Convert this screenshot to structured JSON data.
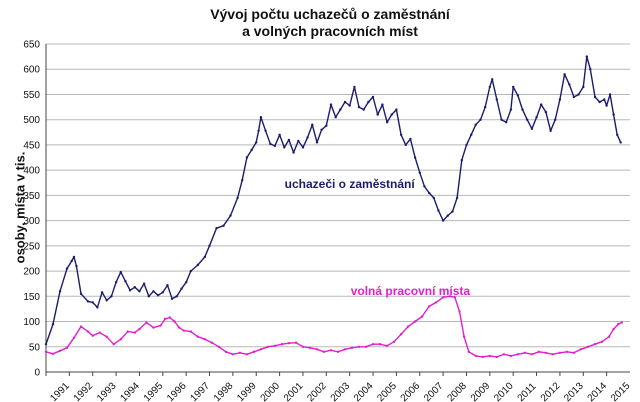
{
  "chart_data": {
    "type": "line",
    "title_line1": "Vývoj počtu uchazečů o zaměstnání",
    "title_line2": "a volných pracovních míst",
    "ylabel": "osoby, místa v tis.",
    "ylim": [
      0,
      650
    ],
    "yticks": [
      0,
      50,
      100,
      150,
      200,
      250,
      300,
      350,
      400,
      450,
      500,
      550,
      600,
      650
    ],
    "xlim": [
      1991,
      2016
    ],
    "xticks": [
      "1991",
      "1992",
      "1993",
      "1994",
      "1995",
      "1996",
      "1997",
      "1998",
      "1999",
      "2000",
      "2001",
      "2002",
      "2003",
      "2004",
      "2005",
      "2006",
      "2007",
      "2008",
      "2009",
      "2010",
      "2011",
      "2012",
      "2013",
      "2014",
      "2015"
    ],
    "grid": "horizontal",
    "series": [
      {
        "name": "uchazeči o zaměstnání",
        "color": "#1c1c6e",
        "points": [
          [
            1991.0,
            55
          ],
          [
            1991.3,
            95
          ],
          [
            1991.6,
            160
          ],
          [
            1991.9,
            205
          ],
          [
            1992.1,
            220
          ],
          [
            1992.2,
            228
          ],
          [
            1992.3,
            210
          ],
          [
            1992.5,
            155
          ],
          [
            1992.8,
            140
          ],
          [
            1993.0,
            138
          ],
          [
            1993.2,
            128
          ],
          [
            1993.4,
            158
          ],
          [
            1993.6,
            142
          ],
          [
            1993.8,
            150
          ],
          [
            1994.0,
            178
          ],
          [
            1994.2,
            198
          ],
          [
            1994.4,
            180
          ],
          [
            1994.6,
            162
          ],
          [
            1994.8,
            168
          ],
          [
            1995.0,
            160
          ],
          [
            1995.2,
            175
          ],
          [
            1995.4,
            150
          ],
          [
            1995.6,
            160
          ],
          [
            1995.8,
            152
          ],
          [
            1996.0,
            158
          ],
          [
            1996.2,
            172
          ],
          [
            1996.4,
            145
          ],
          [
            1996.6,
            150
          ],
          [
            1996.8,
            165
          ],
          [
            1997.0,
            178
          ],
          [
            1997.2,
            200
          ],
          [
            1997.5,
            212
          ],
          [
            1997.8,
            228
          ],
          [
            1998.0,
            250
          ],
          [
            1998.3,
            285
          ],
          [
            1998.6,
            290
          ],
          [
            1998.9,
            310
          ],
          [
            1999.2,
            345
          ],
          [
            1999.4,
            380
          ],
          [
            1999.6,
            425
          ],
          [
            1999.8,
            440
          ],
          [
            2000.0,
            455
          ],
          [
            2000.1,
            478
          ],
          [
            2000.2,
            505
          ],
          [
            2000.4,
            478
          ],
          [
            2000.6,
            452
          ],
          [
            2000.8,
            448
          ],
          [
            2001.0,
            470
          ],
          [
            2001.2,
            445
          ],
          [
            2001.4,
            460
          ],
          [
            2001.6,
            435
          ],
          [
            2001.8,
            458
          ],
          [
            2002.0,
            445
          ],
          [
            2002.2,
            465
          ],
          [
            2002.4,
            490
          ],
          [
            2002.6,
            455
          ],
          [
            2002.8,
            480
          ],
          [
            2003.0,
            488
          ],
          [
            2003.2,
            530
          ],
          [
            2003.4,
            505
          ],
          [
            2003.6,
            520
          ],
          [
            2003.8,
            535
          ],
          [
            2004.0,
            528
          ],
          [
            2004.2,
            565
          ],
          [
            2004.4,
            525
          ],
          [
            2004.6,
            520
          ],
          [
            2004.8,
            535
          ],
          [
            2005.0,
            545
          ],
          [
            2005.2,
            510
          ],
          [
            2005.4,
            530
          ],
          [
            2005.6,
            495
          ],
          [
            2005.8,
            510
          ],
          [
            2006.0,
            520
          ],
          [
            2006.2,
            470
          ],
          [
            2006.4,
            450
          ],
          [
            2006.6,
            462
          ],
          [
            2006.8,
            425
          ],
          [
            2007.0,
            395
          ],
          [
            2007.2,
            368
          ],
          [
            2007.4,
            355
          ],
          [
            2007.6,
            345
          ],
          [
            2007.8,
            320
          ],
          [
            2008.0,
            300
          ],
          [
            2008.2,
            310
          ],
          [
            2008.4,
            318
          ],
          [
            2008.6,
            345
          ],
          [
            2008.8,
            420
          ],
          [
            2009.0,
            450
          ],
          [
            2009.2,
            470
          ],
          [
            2009.4,
            490
          ],
          [
            2009.6,
            500
          ],
          [
            2009.8,
            525
          ],
          [
            2010.0,
            565
          ],
          [
            2010.1,
            580
          ],
          [
            2010.3,
            540
          ],
          [
            2010.5,
            500
          ],
          [
            2010.7,
            495
          ],
          [
            2010.9,
            520
          ],
          [
            2011.0,
            565
          ],
          [
            2011.2,
            548
          ],
          [
            2011.4,
            520
          ],
          [
            2011.6,
            500
          ],
          [
            2011.8,
            482
          ],
          [
            2012.0,
            505
          ],
          [
            2012.2,
            530
          ],
          [
            2012.4,
            515
          ],
          [
            2012.6,
            478
          ],
          [
            2012.8,
            500
          ],
          [
            2013.0,
            540
          ],
          [
            2013.2,
            590
          ],
          [
            2013.4,
            570
          ],
          [
            2013.6,
            545
          ],
          [
            2013.8,
            550
          ],
          [
            2014.0,
            565
          ],
          [
            2014.15,
            625
          ],
          [
            2014.3,
            600
          ],
          [
            2014.5,
            545
          ],
          [
            2014.7,
            535
          ],
          [
            2014.9,
            540
          ],
          [
            2015.0,
            528
          ],
          [
            2015.15,
            550
          ],
          [
            2015.3,
            510
          ],
          [
            2015.45,
            470
          ],
          [
            2015.6,
            455
          ]
        ]
      },
      {
        "name": "volná pracovní místa",
        "color": "#e21fce",
        "points": [
          [
            1991.0,
            40
          ],
          [
            1991.3,
            36
          ],
          [
            1991.6,
            42
          ],
          [
            1991.9,
            48
          ],
          [
            1992.2,
            68
          ],
          [
            1992.5,
            90
          ],
          [
            1992.8,
            80
          ],
          [
            1993.0,
            72
          ],
          [
            1993.3,
            78
          ],
          [
            1993.6,
            70
          ],
          [
            1993.9,
            55
          ],
          [
            1994.2,
            65
          ],
          [
            1994.5,
            80
          ],
          [
            1994.8,
            78
          ],
          [
            1995.0,
            85
          ],
          [
            1995.3,
            98
          ],
          [
            1995.6,
            88
          ],
          [
            1995.9,
            92
          ],
          [
            1996.1,
            105
          ],
          [
            1996.3,
            108
          ],
          [
            1996.5,
            100
          ],
          [
            1996.7,
            88
          ],
          [
            1996.9,
            82
          ],
          [
            1997.2,
            80
          ],
          [
            1997.5,
            70
          ],
          [
            1997.8,
            65
          ],
          [
            1998.1,
            58
          ],
          [
            1998.4,
            50
          ],
          [
            1998.7,
            40
          ],
          [
            1999.0,
            35
          ],
          [
            1999.3,
            38
          ],
          [
            1999.6,
            35
          ],
          [
            1999.9,
            40
          ],
          [
            2000.2,
            45
          ],
          [
            2000.5,
            50
          ],
          [
            2000.8,
            52
          ],
          [
            2001.1,
            55
          ],
          [
            2001.4,
            57
          ],
          [
            2001.7,
            58
          ],
          [
            2002.0,
            50
          ],
          [
            2002.3,
            48
          ],
          [
            2002.6,
            45
          ],
          [
            2002.9,
            40
          ],
          [
            2003.2,
            43
          ],
          [
            2003.5,
            40
          ],
          [
            2003.8,
            45
          ],
          [
            2004.1,
            48
          ],
          [
            2004.4,
            50
          ],
          [
            2004.7,
            50
          ],
          [
            2005.0,
            55
          ],
          [
            2005.3,
            55
          ],
          [
            2005.6,
            52
          ],
          [
            2005.9,
            60
          ],
          [
            2006.2,
            75
          ],
          [
            2006.5,
            90
          ],
          [
            2006.8,
            100
          ],
          [
            2007.1,
            110
          ],
          [
            2007.4,
            130
          ],
          [
            2007.7,
            138
          ],
          [
            2008.0,
            148
          ],
          [
            2008.3,
            150
          ],
          [
            2008.5,
            148
          ],
          [
            2008.7,
            120
          ],
          [
            2008.9,
            70
          ],
          [
            2009.1,
            40
          ],
          [
            2009.4,
            32
          ],
          [
            2009.7,
            30
          ],
          [
            2010.0,
            32
          ],
          [
            2010.3,
            30
          ],
          [
            2010.6,
            35
          ],
          [
            2010.9,
            32
          ],
          [
            2011.2,
            35
          ],
          [
            2011.5,
            38
          ],
          [
            2011.8,
            35
          ],
          [
            2012.1,
            40
          ],
          [
            2012.4,
            38
          ],
          [
            2012.7,
            35
          ],
          [
            2013.0,
            38
          ],
          [
            2013.3,
            40
          ],
          [
            2013.6,
            38
          ],
          [
            2013.9,
            45
          ],
          [
            2014.2,
            50
          ],
          [
            2014.5,
            55
          ],
          [
            2014.8,
            60
          ],
          [
            2015.1,
            70
          ],
          [
            2015.3,
            85
          ],
          [
            2015.5,
            95
          ],
          [
            2015.65,
            98
          ]
        ]
      }
    ],
    "annotations": [
      {
        "text": "uchazeči o zaměstnání",
        "series": 0,
        "at": [
          2004.0,
          365
        ]
      },
      {
        "text": "volná pracovní místa",
        "series": 1,
        "at": [
          2006.6,
          153
        ]
      }
    ]
  }
}
